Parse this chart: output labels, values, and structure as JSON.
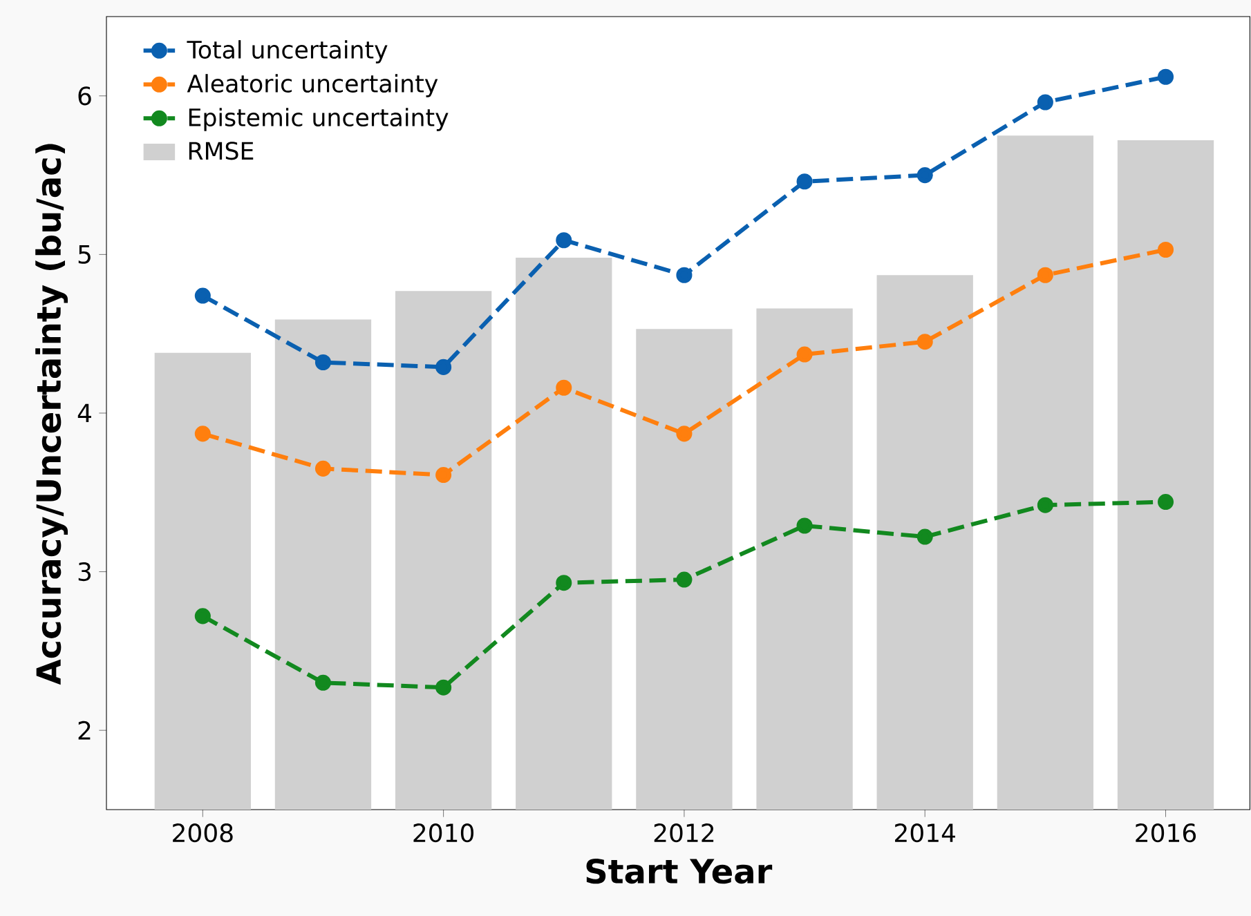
{
  "chart_data": {
    "type": "line",
    "xlabel": "Start Year",
    "ylabel": "Accuracy/Uncertainty (bu/ac)",
    "x": [
      2008,
      2009,
      2010,
      2011,
      2012,
      2013,
      2014,
      2015,
      2016
    ],
    "xlim": [
      2007.2,
      2016.7
    ],
    "ylim": [
      1.5,
      6.5
    ],
    "xticks": [
      2008,
      2010,
      2012,
      2014,
      2016
    ],
    "yticks": [
      2,
      3,
      4,
      5,
      6
    ],
    "legend": "top left",
    "series": [
      {
        "name": "Total uncertainty",
        "color": "#0a60b0",
        "marker": "circle",
        "line_style": "dashed",
        "values": [
          4.74,
          4.32,
          4.29,
          5.09,
          4.87,
          5.46,
          5.5,
          5.96,
          6.12
        ]
      },
      {
        "name": "Aleatoric uncertainty",
        "color": "#ff7f0e",
        "marker": "circle",
        "line_style": "dashed",
        "values": [
          3.87,
          3.65,
          3.61,
          4.16,
          3.87,
          4.37,
          4.45,
          4.87,
          5.03
        ]
      },
      {
        "name": "Epistemic uncertainty",
        "color": "#12891f",
        "marker": "circle",
        "line_style": "dashed",
        "values": [
          2.72,
          2.3,
          2.27,
          2.93,
          2.95,
          3.29,
          3.22,
          3.42,
          3.44
        ]
      },
      {
        "name": "RMSE",
        "type": "bar",
        "color": "#d0d0d0",
        "values": [
          4.38,
          4.59,
          4.77,
          4.98,
          4.53,
          4.66,
          4.87,
          5.75,
          5.72
        ]
      }
    ]
  }
}
